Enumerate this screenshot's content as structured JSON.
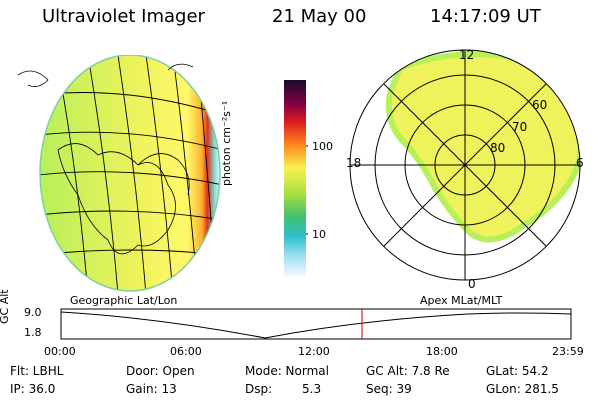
{
  "header": {
    "title": "Ultraviolet Imager",
    "date": "21 May 00",
    "time": "14:17:09 UT"
  },
  "colorbar": {
    "unit_label": "photon cm⁻²s⁻¹",
    "ticks": [
      "100",
      "10"
    ]
  },
  "polar": {
    "mlt_labels": [
      "12",
      "18",
      "6",
      "0"
    ],
    "mlat_labels": [
      "60",
      "70",
      "80"
    ]
  },
  "timeline": {
    "y_label": "GC Alt",
    "y_ticks": [
      "9.0",
      "1.8"
    ],
    "left_caption": "Geographic Lat/Lon",
    "right_caption": "Apex MLat/MLT",
    "x_ticks": [
      "00:00",
      "06:00",
      "12:00",
      "18:00",
      "23:59"
    ]
  },
  "info": {
    "flt": "Flt: LBHL",
    "ip": "IP: 36.0",
    "door": "Door: Open",
    "gain": "Gain: 13",
    "mode": "Mode: Normal",
    "dsp_label": "Dsp:",
    "dsp_value": "5.3",
    "gcalt": "GC Alt: 7.8 Re",
    "seq": "Seq: 39",
    "glat": "GLat:  54.2",
    "glon": "GLon: 281.5"
  },
  "colors": {
    "aurora_green": "#b8f05a",
    "aurora_yellow": "#f4f45a",
    "edge_orange": "#ff8c00",
    "cursor_red": "#cc0000"
  }
}
